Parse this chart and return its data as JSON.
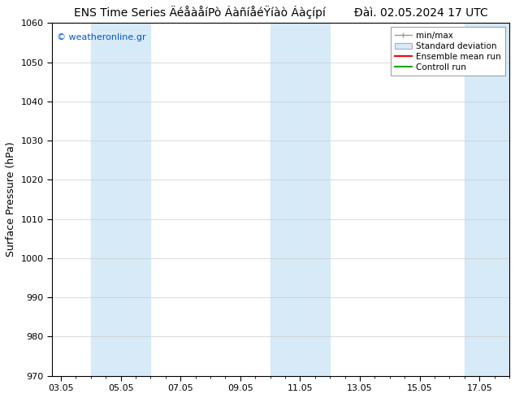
{
  "title_left": "ENS Time Series ÄéåàåíPò ÁàñíåéŸíàò Áàçípí",
  "title_right": "Đàì. 02.05.2024 17 UTC",
  "ylabel": "Surface Pressure (hPa)",
  "ylim": [
    970,
    1060
  ],
  "yticks": [
    970,
    980,
    990,
    1000,
    1010,
    1020,
    1030,
    1040,
    1050,
    1060
  ],
  "xtick_labels": [
    "03.05",
    "05.05",
    "07.05",
    "09.05",
    "11.05",
    "13.05",
    "15.05",
    "17.05"
  ],
  "xtick_positions": [
    0,
    2,
    4,
    6,
    8,
    10,
    12,
    14
  ],
  "xlim": [
    -0.3,
    15.0
  ],
  "shaded_bands": [
    {
      "x_start": 1.0,
      "x_end": 3.0,
      "color": "#d6eaf8"
    },
    {
      "x_start": 7.0,
      "x_end": 9.0,
      "color": "#d6eaf8"
    },
    {
      "x_start": 13.5,
      "x_end": 15.0,
      "color": "#d6eaf8"
    }
  ],
  "watermark": "© weatheronline.gr",
  "watermark_color": "#0055cc",
  "background_color": "#ffffff",
  "plot_bg_color": "#ffffff",
  "legend_labels": [
    "min/max",
    "Standard deviation",
    "Ensemble mean run",
    "Controll run"
  ],
  "grid_color": "#cccccc",
  "title_fontsize": 10,
  "axis_fontsize": 9,
  "tick_fontsize": 8,
  "legend_fontsize": 7.5
}
